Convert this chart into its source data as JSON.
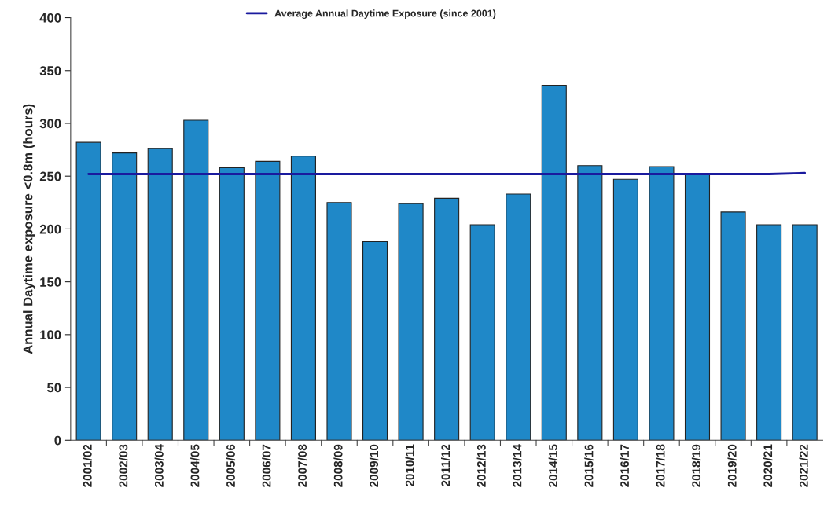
{
  "chart_data": {
    "type": "bar",
    "ylabel": "Annual Daytime exposure <0.8m (hours)",
    "categories": [
      "2001/02",
      "2002/03",
      "2003/04",
      "2004/05",
      "2005/06",
      "2006/07",
      "2007/08",
      "2008/09",
      "2009/10",
      "2010/11",
      "2011/12",
      "2012/13",
      "2013/14",
      "2014/15",
      "2015/16",
      "2016/17",
      "2017/18",
      "2018/19",
      "2019/20",
      "2020/21",
      "2021/22"
    ],
    "series": [
      {
        "color": "#1f88c8",
        "values": [
          282,
          272,
          276,
          303,
          258,
          264,
          269,
          225,
          188,
          224,
          229,
          204,
          233,
          336,
          260,
          247,
          259,
          252,
          216,
          204,
          204
        ]
      },
      {
        "type": "line",
        "name": "Average Annual Daytime Exposure (since 2001)",
        "color": "#1a1a9e",
        "values": [
          252,
          252,
          252,
          252,
          252,
          252,
          252,
          252,
          252,
          252,
          252,
          252,
          252,
          252,
          252,
          252,
          252,
          252,
          252,
          252,
          253
        ]
      }
    ],
    "ylim": [
      0,
      400
    ],
    "yticks": [
      0,
      50,
      100,
      150,
      200,
      250,
      300,
      350,
      400
    ],
    "grid": false,
    "legend": "top",
    "marker": "none",
    "line_style": "solid"
  }
}
